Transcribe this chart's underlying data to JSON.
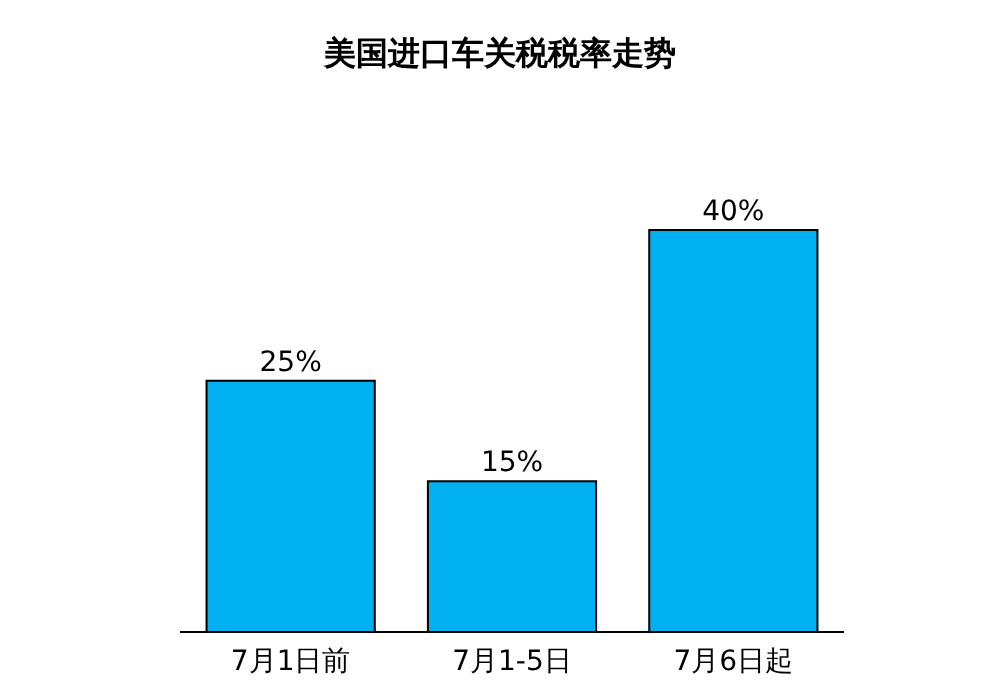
{
  "chart_data": {
    "type": "bar",
    "title": "美国进口车关税税率走势",
    "categories": [
      "7月1日前",
      "7月1-5日",
      "7月6日起"
    ],
    "values": [
      25,
      15,
      40
    ],
    "value_labels": [
      "25%",
      "15%",
      "40%"
    ],
    "color": "#00b0f0"
  }
}
